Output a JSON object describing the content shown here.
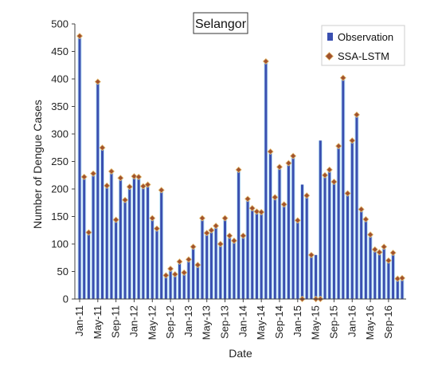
{
  "chart_data": {
    "type": "bar",
    "title": "Selangor",
    "xlabel": "Date",
    "ylabel": "Number of Dengue Cases",
    "ylim": [
      0,
      500
    ],
    "yticks": [
      0,
      50,
      100,
      150,
      200,
      250,
      300,
      350,
      400,
      450,
      500
    ],
    "grid": false,
    "legend_position": "top-right",
    "x_tick_labels": [
      "Jan-11",
      "May-11",
      "Sep-11",
      "Jan-12",
      "May-12",
      "Sep-12",
      "Jan-13",
      "May-13",
      "Sep-13",
      "Jan-14",
      "May-14",
      "Sep-14",
      "Jan-15",
      "May-15",
      "Sep-15",
      "Jan-16",
      "May-16",
      "Sep-16"
    ],
    "categories": [
      "Jan-11",
      "Feb-11",
      "Mar-11",
      "Apr-11",
      "May-11",
      "Jun-11",
      "Jul-11",
      "Aug-11",
      "Sep-11",
      "Oct-11",
      "Nov-11",
      "Dec-11",
      "Jan-12",
      "Feb-12",
      "Mar-12",
      "Apr-12",
      "May-12",
      "Jun-12",
      "Jul-12",
      "Aug-12",
      "Sep-12",
      "Oct-12",
      "Nov-12",
      "Dec-12",
      "Jan-13",
      "Feb-13",
      "Mar-13",
      "Apr-13",
      "May-13",
      "Jun-13",
      "Jul-13",
      "Aug-13",
      "Sep-13",
      "Oct-13",
      "Nov-13",
      "Dec-13",
      "Jan-14",
      "Feb-14",
      "Mar-14",
      "Apr-14",
      "May-14",
      "Jun-14",
      "Jul-14",
      "Aug-14",
      "Sep-14",
      "Oct-14",
      "Nov-14",
      "Dec-14",
      "Jan-15",
      "Feb-15",
      "Mar-15",
      "Apr-15",
      "May-15",
      "Jun-15",
      "Jul-15",
      "Aug-15",
      "Sep-15",
      "Oct-15",
      "Nov-15",
      "Dec-15",
      "Jan-16",
      "Feb-16",
      "Mar-16",
      "Apr-16",
      "May-16",
      "Jun-16",
      "Jul-16",
      "Aug-16",
      "Sep-16",
      "Oct-16",
      "Nov-16",
      "Dec-16"
    ],
    "series": [
      {
        "name": "Observation",
        "kind": "bar",
        "color": "#3a4fb0",
        "values": [
          475,
          220,
          120,
          225,
          395,
          272,
          205,
          230,
          145,
          218,
          178,
          202,
          222,
          220,
          205,
          208,
          147,
          128,
          198,
          42,
          55,
          45,
          68,
          48,
          72,
          93,
          62,
          145,
          120,
          125,
          132,
          98,
          145,
          115,
          108,
          232,
          115,
          180,
          163,
          158,
          155,
          432,
          265,
          183,
          240,
          172,
          245,
          258,
          143,
          208,
          187,
          80,
          80,
          288,
          223,
          233,
          213,
          278,
          400,
          192,
          285,
          333,
          162,
          143,
          115,
          87,
          82,
          92,
          68,
          82,
          35,
          35
        ]
      },
      {
        "name": "SSA-LSTM",
        "kind": "marker",
        "color": "#a0522d",
        "values": [
          478,
          222,
          121,
          228,
          395,
          275,
          206,
          232,
          144,
          220,
          180,
          204,
          223,
          222,
          205,
          208,
          147,
          128,
          198,
          43,
          55,
          45,
          68,
          48,
          72,
          95,
          62,
          147,
          120,
          125,
          133,
          100,
          147,
          115,
          106,
          235,
          115,
          182,
          165,
          159,
          158,
          432,
          268,
          185,
          240,
          172,
          247,
          260,
          143,
          0,
          188,
          80,
          0,
          0,
          225,
          235,
          213,
          278,
          402,
          192,
          288,
          335,
          163,
          145,
          117,
          90,
          85,
          95,
          70,
          84,
          37,
          38
        ]
      }
    ]
  },
  "colors": {
    "bar_fill": "#3a4fb0",
    "bar_halo": "#9dd7f5",
    "marker_fill": "#a0522d",
    "marker_stroke": "#e8c27a",
    "axis": "#444444"
  }
}
